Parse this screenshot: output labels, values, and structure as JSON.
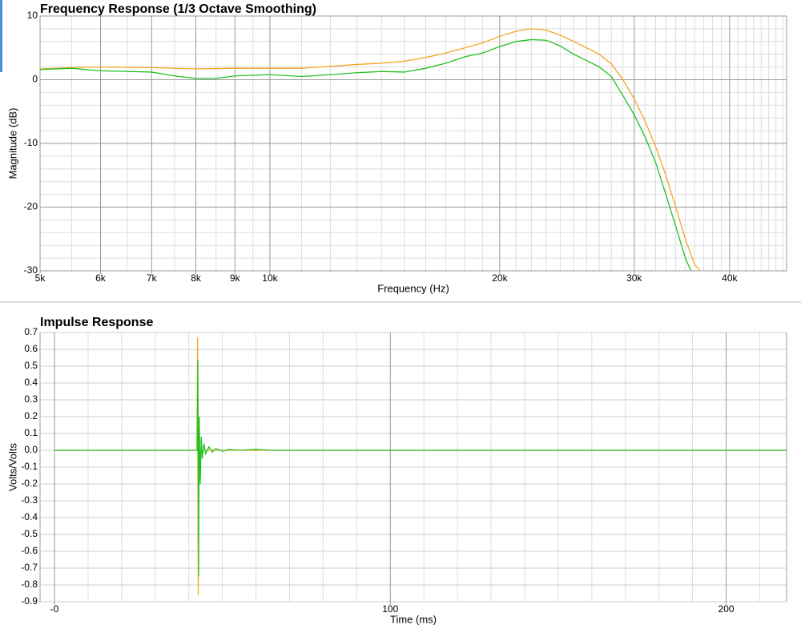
{
  "chart_data": [
    {
      "type": "line",
      "title": "Frequency Response (1/3 Octave Smoothing)",
      "x_label": "Frequency (Hz)",
      "y_label": "Magnitude (dB)",
      "xscale": "log",
      "xlim": [
        5000,
        47500
      ],
      "ylim": [
        -30,
        10
      ],
      "xticks": [
        {
          "value": 5000,
          "label": "5k"
        },
        {
          "value": 6000,
          "label": "6k"
        },
        {
          "value": 7000,
          "label": "7k"
        },
        {
          "value": 8000,
          "label": "8k"
        },
        {
          "value": 9000,
          "label": "9k"
        },
        {
          "value": 10000,
          "label": "10k"
        },
        {
          "value": 20000,
          "label": "20k"
        },
        {
          "value": 30000,
          "label": "30k"
        },
        {
          "value": 40000,
          "label": "40k"
        }
      ],
      "yticks": [
        -30,
        -20,
        -10,
        0,
        10
      ],
      "xminor": [
        5500,
        6500,
        7500,
        8500,
        9500,
        11000,
        12000,
        13000,
        14000,
        15000,
        16000,
        17000,
        18000,
        19000,
        21000,
        22000,
        23000,
        24000,
        25000,
        26000,
        27000,
        28000,
        29000,
        31000,
        32000,
        33000,
        34000,
        35000,
        36000,
        37000,
        38000,
        39000,
        41000,
        42000,
        43000,
        44000,
        45000,
        46000,
        47000
      ],
      "yminor": [
        -28,
        -26,
        -24,
        -22,
        -18,
        -16,
        -14,
        -12,
        -8,
        -6,
        -4,
        -2,
        2,
        4,
        6,
        8
      ],
      "grid": true,
      "series": [
        {
          "color": "#f5a623",
          "x": [
            5000,
            5500,
            6000,
            7000,
            8000,
            9000,
            10000,
            11000,
            12000,
            13000,
            14000,
            15000,
            16000,
            17000,
            18000,
            19000,
            20000,
            21000,
            22000,
            23000,
            24000,
            25000,
            26000,
            27000,
            28000,
            29000,
            30000,
            31000,
            32000,
            33000,
            34000,
            35000,
            36000,
            36600
          ],
          "values": [
            1.7,
            1.9,
            2.0,
            1.9,
            1.7,
            1.8,
            1.8,
            1.8,
            2.1,
            2.4,
            2.6,
            2.9,
            3.5,
            4.2,
            5.0,
            5.8,
            6.8,
            7.6,
            8.0,
            7.8,
            7.0,
            6.0,
            5.0,
            4.0,
            2.5,
            0,
            -3,
            -6.5,
            -10.5,
            -15,
            -20,
            -25,
            -29,
            -30
          ]
        },
        {
          "color": "#22c122",
          "x": [
            5000,
            5500,
            6000,
            7000,
            7500,
            8000,
            8500,
            9000,
            10000,
            11000,
            12000,
            13000,
            14000,
            15000,
            16000,
            17000,
            18000,
            19000,
            20000,
            21000,
            22000,
            23000,
            24000,
            25000,
            26000,
            27000,
            28000,
            29000,
            30000,
            31000,
            32000,
            33000,
            34000,
            35000,
            35600
          ],
          "values": [
            1.6,
            1.8,
            1.4,
            1.2,
            0.6,
            0.2,
            0.2,
            0.6,
            0.8,
            0.5,
            0.8,
            1.1,
            1.3,
            1.2,
            1.8,
            2.6,
            3.6,
            4.2,
            5.2,
            6.0,
            6.3,
            6.2,
            5.3,
            4.0,
            3.0,
            2.0,
            0.5,
            -2.5,
            -5.5,
            -9,
            -13,
            -18,
            -23,
            -28,
            -30
          ]
        }
      ]
    },
    {
      "type": "line",
      "title": "Impulse Response",
      "x_label": "Time (ms)",
      "y_label": "Volts/Volts",
      "xlim": [
        -4.3,
        218
      ],
      "ylim": [
        -0.9,
        0.7
      ],
      "xticks": [
        {
          "value": 0,
          "label": "-0"
        },
        100,
        200
      ],
      "yticks": [
        0.7,
        0.6,
        0.5,
        0.4,
        0.3,
        0.2,
        0.1,
        {
          "value": 0,
          "label": "0.0"
        },
        -0.1,
        -0.2,
        -0.3,
        -0.4,
        -0.5,
        -0.6,
        -0.7,
        -0.8,
        -0.9
      ],
      "xminor": [
        10,
        20,
        30,
        40,
        50,
        60,
        70,
        80,
        90,
        110,
        120,
        130,
        140,
        150,
        160,
        170,
        180,
        190,
        210
      ],
      "yminor": [],
      "grid": true,
      "series": [
        {
          "color": "#f5a623",
          "x": [
            0,
            42.4,
            42.6,
            42.8,
            43.0,
            218
          ],
          "values": [
            0,
            0,
            0.67,
            -0.86,
            0,
            0
          ]
        },
        {
          "color": "#22c122",
          "x": [
            0,
            42.5,
            42.7,
            42.9,
            43.1,
            43.4,
            43.7,
            44,
            44.5,
            45,
            46,
            47,
            48,
            50,
            52,
            55,
            60,
            65,
            70,
            218
          ],
          "values": [
            0,
            0,
            0.54,
            -0.75,
            0.2,
            -0.2,
            0.08,
            -0.05,
            0.04,
            -0.02,
            0.02,
            -0.01,
            0.01,
            -0.005,
            0.005,
            0,
            0.005,
            0,
            0,
            0
          ]
        }
      ]
    }
  ]
}
